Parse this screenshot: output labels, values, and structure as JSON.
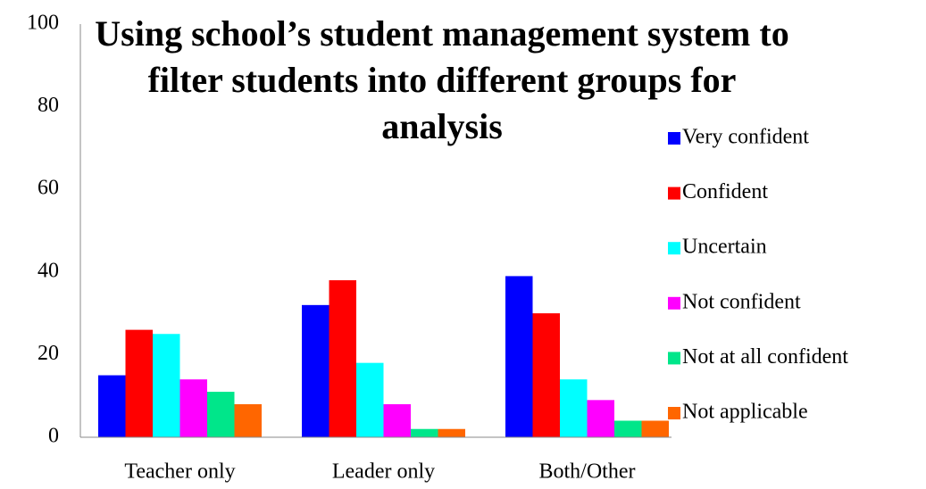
{
  "chart_data": {
    "type": "bar",
    "title": "Using school’s student management system to filter students into different groups for analysis",
    "categories": [
      "Teacher only",
      "Leader only",
      "Both/Other"
    ],
    "series": [
      {
        "name": "Very confident",
        "color": "#0000ff",
        "values": [
          15,
          32,
          39
        ]
      },
      {
        "name": "Confident",
        "color": "#ff0000",
        "values": [
          26,
          38,
          30
        ]
      },
      {
        "name": "Uncertain",
        "color": "#00ffff",
        "values": [
          25,
          18,
          14
        ]
      },
      {
        "name": "Not confident",
        "color": "#ff00ff",
        "values": [
          14,
          8,
          9
        ]
      },
      {
        "name": "Not at all confident",
        "color": "#00e68a",
        "values": [
          11,
          2,
          4
        ]
      },
      {
        "name": "Not applicable",
        "color": "#ff6600",
        "values": [
          8,
          2,
          4
        ]
      }
    ],
    "ylim": [
      0,
      100
    ],
    "yticks": [
      0,
      20,
      40,
      60,
      80,
      100
    ],
    "grid": false,
    "legend": "right"
  }
}
